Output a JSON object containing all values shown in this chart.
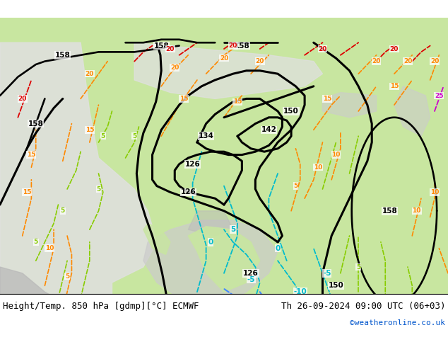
{
  "title_left": "Height/Temp. 850 hPa [gdmp][°C] ECMWF",
  "title_right": "Th 26-09-2024 09:00 UTC (06+03)",
  "watermark": "©weatheronline.co.uk",
  "bg_color": "#ffffff",
  "figsize": [
    6.34,
    4.9
  ],
  "dpi": 100,
  "bottom_text_color": "#000000",
  "watermark_color": "#0055cc",
  "font_size_bottom": 9,
  "font_size_watermark": 8,
  "colors": {
    "geo": "#000000",
    "cyan": "#00bbcc",
    "blue": "#4488ff",
    "orange": "#ff8800",
    "green": "#88cc00",
    "red": "#dd0000",
    "pink": "#cc00cc",
    "land_green": "#c8e6a0",
    "land_gray": "#b8b8b8",
    "sea": "#e0e0e0"
  }
}
